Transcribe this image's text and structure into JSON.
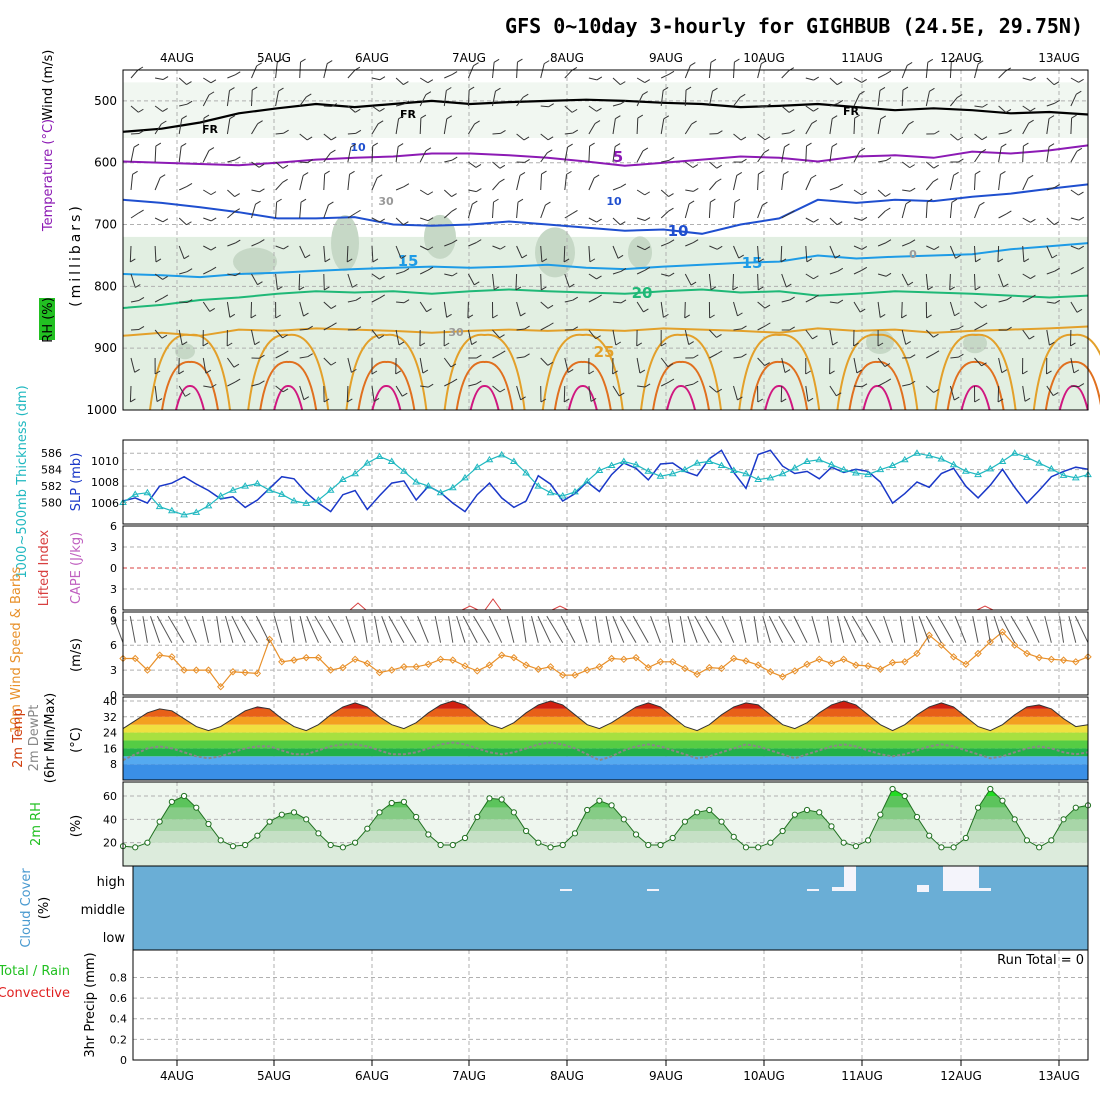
{
  "title": "GFS 0~10day 3-hourly for GIGHBUB (24.5E, 29.75N)",
  "colors": {
    "temp_purple": "#8c1ab4",
    "temp_blue": "#1f4fcf",
    "temp_lightblue": "#1e9be6",
    "temp_green": "#1fb877",
    "temp_orange": "#e3a02a",
    "temp_darkorange": "#e0701f",
    "temp_magenta": "#d01880",
    "rh_fill": "#e2efe2",
    "rh_mid": "#c6d8c6",
    "rh_dark": "#8fa58f",
    "sfc_rh_green": "#22c022",
    "cloud_blue": "#6aaed6",
    "barb": "#555555",
    "wind_speed": "#e8902a",
    "thickness": "#20b8c0",
    "slp": "#1a38c8",
    "lifted_index": "#d84040",
    "cape": "#c060c0",
    "dewpoint_line": "#888888"
  },
  "chart_data": [
    {
      "type": "line",
      "panel": "upper-air",
      "ylabel_parts": [
        "RH (%)",
        "Temperature (°C)",
        "Wind (m/s)"
      ],
      "ylabel2": "(millibars)",
      "x_ticks": [
        "4AUG",
        "5AUG",
        "6AUG",
        "7AUG",
        "8AUG",
        "9AUG",
        "10AUG",
        "11AUG",
        "12AUG",
        "13AUG"
      ],
      "y_ticks": [
        "500",
        "600",
        "700",
        "800",
        "900",
        "1000"
      ],
      "ylim": [
        1000,
        450
      ],
      "contour_labels": [
        "FR",
        "FR",
        "FR",
        "5",
        "10",
        "15",
        "15",
        "20",
        "25",
        "10",
        "10",
        "30",
        "30",
        "0"
      ],
      "isotherms": [
        {
          "name": "FR",
          "level_mb": [
            550,
            545,
            535,
            520,
            512,
            505,
            510,
            505,
            500,
            505,
            502,
            500,
            498,
            500,
            503,
            505,
            510,
            508,
            505,
            510,
            515,
            512,
            515,
            520,
            518,
            522
          ]
        },
        {
          "name": "5",
          "level_mb": [
            598,
            600,
            602,
            604,
            600,
            595,
            592,
            590,
            585,
            585,
            588,
            592,
            598,
            605,
            600,
            595,
            590,
            592,
            598,
            590,
            588,
            592,
            582,
            585,
            580,
            572
          ]
        },
        {
          "name": "10",
          "level_mb": [
            660,
            665,
            672,
            680,
            690,
            690,
            688,
            700,
            702,
            700,
            695,
            700,
            705,
            710,
            708,
            715,
            700,
            690,
            660,
            665,
            660,
            662,
            655,
            650,
            642,
            635
          ]
        },
        {
          "name": "15",
          "level_mb": [
            780,
            782,
            785,
            780,
            778,
            775,
            772,
            770,
            768,
            770,
            768,
            765,
            770,
            772,
            768,
            765,
            762,
            760,
            750,
            755,
            752,
            750,
            748,
            740,
            735,
            730
          ]
        },
        {
          "name": "20",
          "level_mb": [
            835,
            830,
            822,
            818,
            812,
            808,
            810,
            808,
            812,
            808,
            805,
            808,
            810,
            812,
            808,
            805,
            810,
            808,
            815,
            812,
            808,
            810,
            812,
            815,
            818,
            815
          ]
        },
        {
          "name": "25",
          "level_mb": [
            880,
            875,
            880,
            870,
            872,
            868,
            870,
            872,
            875,
            872,
            870,
            872,
            870,
            872,
            868,
            870,
            872,
            875,
            868,
            872,
            870,
            875,
            872,
            870,
            868,
            865
          ]
        }
      ]
    },
    {
      "type": "line",
      "panel": "thickness-slp",
      "ylabel_left": "1000~500mb Thickness (dm)",
      "ylabel_right": "SLP (mb)",
      "y_ticks_left": [
        "586",
        "584",
        "582",
        "580"
      ],
      "y_ticks_right": [
        "1010",
        "1008",
        "1006"
      ],
      "series": [
        {
          "name": "SLP",
          "values": [
            1006.2,
            1006.5,
            1006.0,
            1007.6,
            1007.9,
            1008.5,
            1007.8,
            1007.2,
            1006.4,
            1006.6,
            1005.6,
            1006.3,
            1007.4,
            1008.5,
            1008.3,
            1007.0,
            1006.0,
            1005.2,
            1006.8,
            1007.2,
            1005.4,
            1006.7,
            1007.9,
            1008.1,
            1006.3,
            1007.6,
            1007.0,
            1006.0,
            1005.2,
            1006.8,
            1007.9,
            1006.5,
            1005.6,
            1006.2,
            1008.6,
            1007.8,
            1006.2,
            1006.9,
            1008.0,
            1007.1,
            1008.7,
            1009.8,
            1009.3,
            1008.2,
            1009.7,
            1009.8,
            1009.0,
            1008.6,
            1010.2,
            1011.0,
            1008.9,
            1007.4,
            1010.6,
            1011.0,
            1009.5,
            1008.8,
            1009.0,
            1008.3,
            1009.4,
            1008.9,
            1009.2,
            1009.0,
            1008.0,
            1006.0,
            1006.9,
            1008.0,
            1007.5,
            1008.8,
            1009.3,
            1007.6,
            1006.5,
            1007.7,
            1009.2,
            1007.5,
            1006.0,
            1007.2,
            1008.5,
            1009.0,
            1009.4,
            1009.2
          ]
        },
        {
          "name": "Thickness",
          "values": [
            580.0,
            581.0,
            581.2,
            579.5,
            579.0,
            578.5,
            578.8,
            579.6,
            580.8,
            581.5,
            582.0,
            582.3,
            581.5,
            581.0,
            580.2,
            579.9,
            580.3,
            581.5,
            582.8,
            583.5,
            584.8,
            585.6,
            585.0,
            583.8,
            582.5,
            582.0,
            581.2,
            581.8,
            583.0,
            584.3,
            585.2,
            585.8,
            585.0,
            583.6,
            582.0,
            581.2,
            580.8,
            581.3,
            582.6,
            583.9,
            584.5,
            585.0,
            584.6,
            583.8,
            583.2,
            583.5,
            584.0,
            584.8,
            585.0,
            584.5,
            583.9,
            583.5,
            582.8,
            583.0,
            583.5,
            584.2,
            585.0,
            585.2,
            584.6,
            584.0,
            583.6,
            583.4,
            584.0,
            584.5,
            585.2,
            586.0,
            585.7,
            585.3,
            584.6,
            583.8,
            583.4,
            584.1,
            585.0,
            586.0,
            585.5,
            584.8,
            584.1,
            583.3,
            583.0,
            583.4
          ]
        }
      ]
    },
    {
      "type": "line",
      "panel": "stability",
      "ylabel_left": "Lifted Index",
      "ylabel_right": "CAPE (J/kg)",
      "y_ticks": [
        "-6",
        "-3",
        "0",
        "3",
        "6"
      ],
      "ylim": [
        -6,
        6
      ]
    },
    {
      "type": "line",
      "panel": "10m-wind",
      "ylabel": "10m Wind Speed & Barbs",
      "unit": "(m/s)",
      "y_ticks": [
        "9",
        "6",
        "3",
        "0"
      ],
      "ylim": [
        0,
        10
      ],
      "series": [
        {
          "name": "Speed",
          "values": [
            4.4,
            4.4,
            3.0,
            4.8,
            4.6,
            3.0,
            3.0,
            3.0,
            1.0,
            2.8,
            2.7,
            2.6,
            6.7,
            4.0,
            4.2,
            4.5,
            4.5,
            3.0,
            3.3,
            4.3,
            3.8,
            2.7,
            3.0,
            3.4,
            3.4,
            3.7,
            4.3,
            4.2,
            3.5,
            2.9,
            3.6,
            4.8,
            4.5,
            3.6,
            3.1,
            3.4,
            2.4,
            2.4,
            3.0,
            3.4,
            4.4,
            4.3,
            4.5,
            3.3,
            4.0,
            4.0,
            3.2,
            2.5,
            3.3,
            3.2,
            4.4,
            4.1,
            3.6,
            2.8,
            2.2,
            2.9,
            3.7,
            4.3,
            3.8,
            4.3,
            3.6,
            3.5,
            3.1,
            3.9,
            4.0,
            5.0,
            7.2,
            6.0,
            4.6,
            3.7,
            5.0,
            6.4,
            7.6,
            6.0,
            5.0,
            4.5,
            4.3,
            4.2,
            4.0,
            4.6
          ]
        }
      ]
    },
    {
      "type": "area",
      "panel": "2m-temp",
      "ylabel": "2m Temp 2m DewPt (6hr Min/Max)",
      "unit": "(°C)",
      "y_ticks": [
        "40",
        "32",
        "24",
        "16",
        "8"
      ],
      "ylim": [
        0,
        42
      ],
      "series": [
        {
          "name": "2m Temp",
          "values": [
            26,
            30,
            34,
            36,
            35,
            31,
            27,
            25,
            27,
            31,
            35,
            37,
            36,
            31,
            27,
            25,
            28,
            33,
            37,
            39,
            37,
            32,
            28,
            26,
            29,
            34,
            38,
            40,
            38,
            33,
            28,
            26,
            29,
            34,
            38,
            40,
            38,
            33,
            28,
            26,
            29,
            33,
            37,
            39,
            37,
            32,
            27,
            25,
            28,
            33,
            37,
            39,
            38,
            33,
            28,
            26,
            29,
            34,
            38,
            40,
            38,
            33,
            28,
            25,
            28,
            33,
            37,
            39,
            37,
            32,
            27,
            25,
            28,
            33,
            37,
            38,
            36,
            31,
            27,
            28
          ]
        },
        {
          "name": "2m DewPt",
          "values": [
            10,
            13,
            16,
            17,
            16,
            14,
            12,
            11,
            12,
            14,
            16,
            17,
            17,
            15,
            13,
            13,
            15,
            17,
            18,
            18,
            17,
            15,
            13,
            13,
            14,
            16,
            18,
            19,
            18,
            16,
            14,
            13,
            14,
            16,
            18,
            19,
            18,
            16,
            13,
            10,
            12,
            15,
            17,
            18,
            17,
            15,
            13,
            11,
            12,
            14,
            16,
            18,
            17,
            15,
            13,
            11,
            13,
            15,
            17,
            18,
            17,
            15,
            13,
            12,
            13,
            15,
            17,
            18,
            17,
            15,
            13,
            11,
            12,
            14,
            16,
            17,
            16,
            14,
            13,
            14
          ]
        }
      ]
    },
    {
      "type": "area",
      "panel": "2m-rh",
      "ylabel": "2m RH",
      "unit": "(%)",
      "y_ticks": [
        "60",
        "40",
        "20"
      ],
      "ylim": [
        0,
        72
      ],
      "series": [
        {
          "name": "2m RH",
          "values": [
            17,
            16,
            20,
            38,
            55,
            60,
            50,
            36,
            22,
            17,
            18,
            26,
            38,
            44,
            46,
            40,
            28,
            18,
            16,
            20,
            32,
            46,
            54,
            55,
            42,
            27,
            18,
            18,
            24,
            42,
            58,
            57,
            46,
            30,
            20,
            16,
            18,
            28,
            48,
            56,
            52,
            40,
            27,
            18,
            18,
            24,
            38,
            46,
            48,
            38,
            25,
            16,
            16,
            20,
            30,
            44,
            48,
            46,
            34,
            20,
            17,
            22,
            44,
            66,
            60,
            42,
            26,
            16,
            16,
            24,
            50,
            66,
            56,
            40,
            22,
            16,
            22,
            40,
            50,
            52
          ]
        }
      ]
    },
    {
      "type": "bar",
      "panel": "cloud",
      "ylabel": "Cloud Cover",
      "unit": "(%)",
      "y_ticks": [
        "high",
        "middle",
        "low"
      ]
    },
    {
      "type": "bar",
      "panel": "precip",
      "ylabel_parts": [
        "Total / Rain",
        "Convective",
        "3hr Precip (mm)"
      ],
      "run_total_label": "Run Total = 0",
      "y_ticks": [
        "0.8",
        "0.6",
        "0.4",
        "0.2",
        "0"
      ],
      "ylim": [
        0,
        1
      ]
    }
  ]
}
